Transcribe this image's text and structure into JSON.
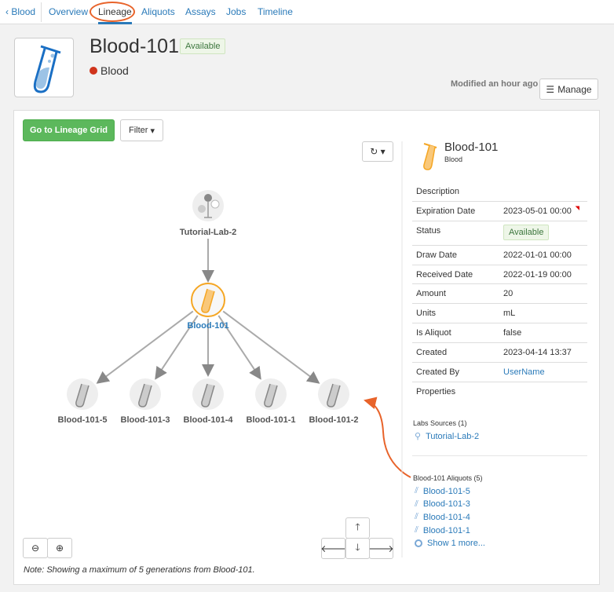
{
  "nav": {
    "back": "Blood",
    "tabs": [
      "Overview",
      "Lineage",
      "Aliquots",
      "Assays",
      "Jobs",
      "Timeline"
    ],
    "active": "Lineage"
  },
  "header": {
    "title": "Blood-101",
    "status": "Available",
    "type": "Blood",
    "type_color": "#d0341c",
    "modified": "Modified an hour ago",
    "manage": "Manage"
  },
  "toolbar": {
    "lineage_grid": "Go to Lineage Grid",
    "filter": "Filter"
  },
  "graph": {
    "parent": "Tutorial-Lab-2",
    "current": "Blood-101",
    "children": [
      "Blood-101-5",
      "Blood-101-3",
      "Blood-101-4",
      "Blood-101-1",
      "Blood-101-2"
    ],
    "note": "Note: Showing a maximum of 5 generations from Blood-101."
  },
  "details": {
    "title": "Blood-101",
    "subtitle": "Blood",
    "rows": [
      {
        "k": "Description",
        "v": ""
      },
      {
        "k": "Expiration Date",
        "v": "2023-05-01 00:00"
      },
      {
        "k": "Status",
        "v": "Available"
      },
      {
        "k": "Draw Date",
        "v": "2022-01-01 00:00"
      },
      {
        "k": "Received Date",
        "v": "2022-01-19 00:00"
      },
      {
        "k": "Amount",
        "v": "20"
      },
      {
        "k": "Units",
        "v": "mL"
      },
      {
        "k": "Is Aliquot",
        "v": "false"
      },
      {
        "k": "Created",
        "v": "2023-04-14 13:37"
      },
      {
        "k": "Created By",
        "v": "UserName"
      },
      {
        "k": "Properties",
        "v": ""
      }
    ],
    "sources_header": "Labs Sources (1)",
    "sources": [
      "Tutorial-Lab-2"
    ],
    "aliquots_header": "Blood-101 Aliquots (5)",
    "aliquots": [
      "Blood-101-5",
      "Blood-101-3",
      "Blood-101-4",
      "Blood-101-1"
    ],
    "show_more": "Show 1 more..."
  },
  "colors": {
    "accent": "#2a7ab9",
    "green": "#5cb85c",
    "highlight": "#f5a623",
    "annotation": "#e8632a"
  }
}
